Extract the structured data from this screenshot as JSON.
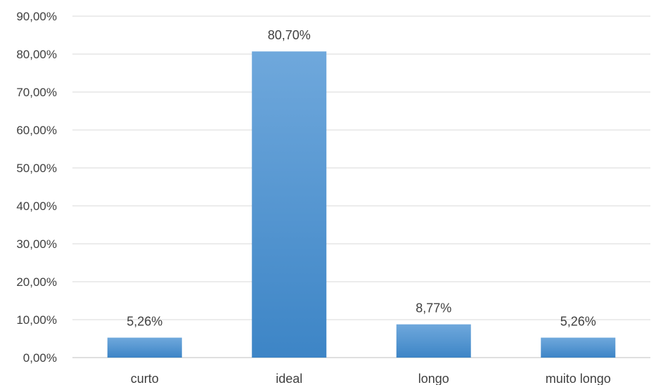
{
  "chart_data": {
    "type": "bar",
    "categories": [
      "curto",
      "ideal",
      "longo",
      "muito longo"
    ],
    "values": [
      5.26,
      80.7,
      8.77,
      5.26
    ],
    "data_labels": [
      "5,26%",
      "80,70%",
      "8,77%",
      "5,26%"
    ],
    "y_ticks": [
      "0,00%",
      "10,00%",
      "20,00%",
      "30,00%",
      "40,00%",
      "50,00%",
      "60,00%",
      "70,00%",
      "80,00%",
      "90,00%"
    ],
    "ylim": [
      0,
      90
    ],
    "grid": true,
    "legend": "none",
    "colors": {
      "bar_top": "#6fa8dc",
      "bar_bottom": "#3d85c6",
      "grid": "#d9d9d9",
      "text": "#404040"
    }
  }
}
